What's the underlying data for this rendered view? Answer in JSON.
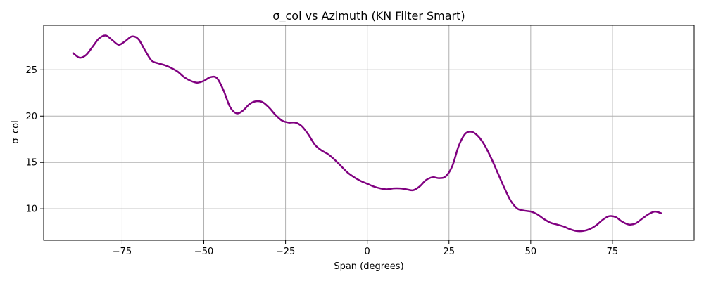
{
  "chart_data": {
    "type": "line",
    "title": "σ_col vs Azimuth (KN Filter Smart)",
    "xlabel": "Span (degrees)",
    "ylabel": "σ_col",
    "xlim": [
      -99,
      100
    ],
    "ylim": [
      6.6,
      29.8
    ],
    "xticks": [
      -75,
      -50,
      -25,
      0,
      25,
      50,
      75
    ],
    "xtick_labels": [
      "−75",
      "−50",
      "−25",
      "0",
      "25",
      "50",
      "75"
    ],
    "yticks": [
      10,
      15,
      20,
      25
    ],
    "ytick_labels": [
      "10",
      "15",
      "20",
      "25"
    ],
    "grid": true,
    "series": [
      {
        "name": "",
        "color": "#800080",
        "x": [
          -90,
          -88,
          -86,
          -84,
          -82,
          -80,
          -78,
          -76,
          -74,
          -72,
          -70,
          -68,
          -66,
          -64,
          -62,
          -60,
          -58,
          -56,
          -54,
          -52,
          -50,
          -48,
          -46,
          -44,
          -42,
          -40,
          -38,
          -36,
          -34,
          -32,
          -30,
          -28,
          -26,
          -24,
          -22,
          -20,
          -18,
          -16,
          -14,
          -12,
          -10,
          -8,
          -6,
          -4,
          -2,
          0,
          2,
          4,
          6,
          8,
          10,
          12,
          14,
          16,
          18,
          20,
          22,
          24,
          26,
          28,
          30,
          32,
          34,
          36,
          38,
          40,
          42,
          44,
          46,
          48,
          50,
          52,
          54,
          56,
          58,
          60,
          62,
          64,
          66,
          68,
          70,
          72,
          74,
          76,
          78,
          80,
          82,
          84,
          86,
          88,
          90
        ],
        "y": [
          26.8,
          26.3,
          26.6,
          27.5,
          28.4,
          28.7,
          28.2,
          27.7,
          28.1,
          28.6,
          28.3,
          27.1,
          26.0,
          25.7,
          25.5,
          25.2,
          24.8,
          24.2,
          23.8,
          23.6,
          23.8,
          24.2,
          24.1,
          22.8,
          21.0,
          20.3,
          20.6,
          21.3,
          21.6,
          21.5,
          20.9,
          20.1,
          19.5,
          19.3,
          19.3,
          18.9,
          18.0,
          16.9,
          16.3,
          15.9,
          15.3,
          14.6,
          13.9,
          13.4,
          13.0,
          12.7,
          12.4,
          12.2,
          12.1,
          12.2,
          12.2,
          12.1,
          12.0,
          12.4,
          13.1,
          13.4,
          13.3,
          13.5,
          14.6,
          16.8,
          18.1,
          18.3,
          17.8,
          16.8,
          15.4,
          13.8,
          12.2,
          10.8,
          10.0,
          9.8,
          9.7,
          9.4,
          8.9,
          8.5,
          8.3,
          8.1,
          7.8,
          7.6,
          7.6,
          7.8,
          8.2,
          8.8,
          9.2,
          9.1,
          8.6,
          8.3,
          8.4,
          8.9,
          9.4,
          9.7,
          9.5
        ]
      }
    ]
  }
}
